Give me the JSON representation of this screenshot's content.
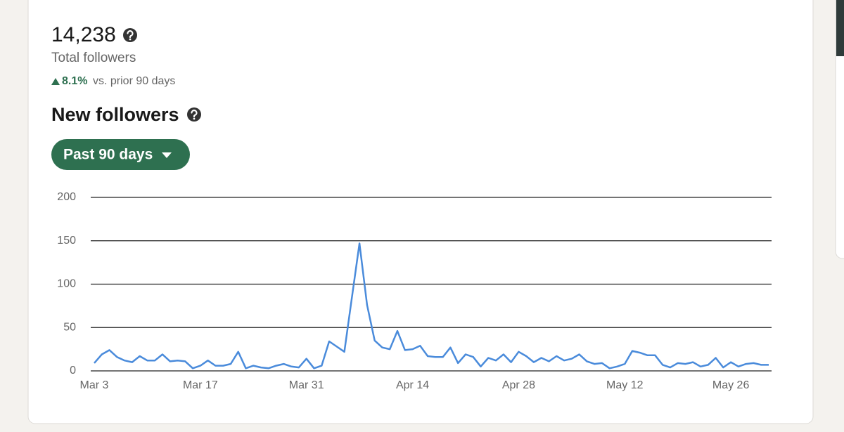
{
  "summary": {
    "total": "14,238",
    "total_label": "Total followers",
    "change": "8.1%",
    "change_label": "vs. prior 90 days",
    "section_title": "New followers",
    "range_button": "Past 90 days"
  },
  "chart_data": {
    "type": "line",
    "color": "#4a8bdb",
    "grid": true,
    "ylim": [
      0,
      200
    ],
    "yticks": [
      0,
      50,
      100,
      150,
      200
    ],
    "categories": [
      "Mar 3",
      null,
      null,
      null,
      null,
      null,
      null,
      null,
      null,
      null,
      null,
      null,
      null,
      null,
      "Mar 17",
      null,
      null,
      null,
      null,
      null,
      null,
      null,
      null,
      null,
      null,
      null,
      null,
      null,
      "Mar 31",
      null,
      null,
      null,
      null,
      null,
      null,
      null,
      null,
      null,
      null,
      null,
      null,
      null,
      "Apr 14",
      null,
      null,
      null,
      null,
      null,
      null,
      null,
      null,
      null,
      null,
      null,
      null,
      null,
      "Apr 28",
      null,
      null,
      null,
      null,
      null,
      null,
      null,
      null,
      null,
      null,
      null,
      null,
      null,
      "May 12",
      null,
      null,
      null,
      null,
      null,
      null,
      null,
      null,
      null,
      null,
      null,
      null,
      null,
      "May 26",
      null,
      null,
      null,
      null,
      null
    ],
    "values": [
      9,
      19,
      24,
      16,
      12,
      10,
      17,
      12,
      12,
      19,
      11,
      12,
      11,
      3,
      6,
      12,
      6,
      6,
      8,
      22,
      3,
      6,
      4,
      3,
      6,
      8,
      5,
      4,
      14,
      3,
      6,
      34,
      28,
      22,
      85,
      147,
      76,
      35,
      27,
      25,
      46,
      24,
      25,
      29,
      17,
      16,
      16,
      27,
      9,
      19,
      16,
      5,
      15,
      12,
      19,
      10,
      22,
      17,
      10,
      15,
      11,
      17,
      12,
      14,
      19,
      11,
      8,
      9,
      3,
      5,
      8,
      23,
      21,
      18,
      18,
      7,
      4,
      9,
      8,
      10,
      5,
      7,
      15,
      4,
      10,
      5,
      8,
      9,
      7,
      7
    ]
  }
}
